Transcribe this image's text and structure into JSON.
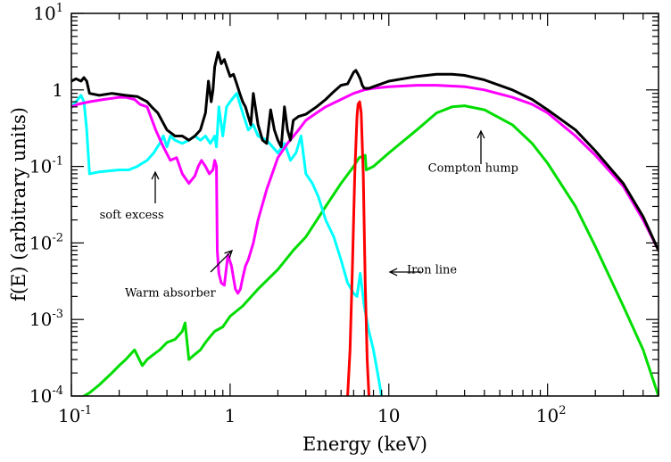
{
  "chart_data": {
    "type": "line",
    "title": "",
    "xlabel": "Energy (keV)",
    "ylabel": "f(E) (arbitrary units)",
    "x_scale": "log",
    "y_scale": "log",
    "xlim": [
      0.1,
      500
    ],
    "ylim": [
      0.0001,
      10
    ],
    "x_ticks": [
      {
        "value": 0.1,
        "label": "10",
        "sup": "-1"
      },
      {
        "value": 1,
        "label": "1",
        "sup": ""
      },
      {
        "value": 10,
        "label": "10",
        "sup": ""
      },
      {
        "value": 100,
        "label": "10",
        "sup": "2"
      }
    ],
    "y_ticks": [
      {
        "value": 0.0001,
        "label": "10",
        "sup": "-4"
      },
      {
        "value": 0.001,
        "label": "10",
        "sup": "-3"
      },
      {
        "value": 0.01,
        "label": "10",
        "sup": "-2"
      },
      {
        "value": 0.1,
        "label": "10",
        "sup": "-1"
      },
      {
        "value": 1,
        "label": "1",
        "sup": ""
      },
      {
        "value": 10,
        "label": "10",
        "sup": "1"
      }
    ],
    "grid": false,
    "legend": "none",
    "series": [
      {
        "color": "#000000",
        "x": [
          0.1,
          0.107,
          0.115,
          0.12,
          0.125,
          0.13,
          0.15,
          0.18,
          0.22,
          0.26,
          0.3,
          0.32,
          0.35,
          0.4,
          0.45,
          0.5,
          0.55,
          0.6,
          0.65,
          0.7,
          0.73,
          0.76,
          0.78,
          0.8,
          0.84,
          0.88,
          0.92,
          0.97,
          1.0,
          1.05,
          1.1,
          1.15,
          1.2,
          1.25,
          1.3,
          1.35,
          1.4,
          1.5,
          1.6,
          1.7,
          1.8,
          1.9,
          2.0,
          2.1,
          2.2,
          2.3,
          2.4,
          2.5,
          2.7,
          3.0,
          3.5,
          4.0,
          4.5,
          5.0,
          5.5,
          6.0,
          6.2,
          6.4,
          6.6,
          6.8,
          7.0,
          7.5,
          8.0,
          10,
          15,
          20,
          25,
          30,
          40,
          60,
          80,
          100,
          150,
          200,
          300,
          400,
          500
        ],
        "y": [
          1.3,
          1.4,
          1.3,
          1.45,
          1.3,
          0.9,
          0.85,
          0.9,
          0.85,
          0.82,
          0.7,
          0.6,
          0.5,
          0.3,
          0.25,
          0.25,
          0.22,
          0.25,
          0.3,
          0.5,
          1.3,
          0.7,
          1.0,
          2.0,
          3.1,
          2.2,
          2.5,
          1.8,
          1.5,
          1.6,
          1.2,
          0.9,
          0.7,
          0.6,
          0.45,
          0.35,
          0.9,
          0.35,
          0.22,
          0.2,
          0.55,
          0.3,
          0.22,
          0.18,
          0.6,
          0.3,
          0.22,
          0.4,
          0.45,
          0.48,
          0.6,
          0.75,
          0.95,
          1.15,
          1.2,
          1.7,
          1.8,
          1.6,
          1.4,
          1.15,
          1.05,
          1.05,
          1.1,
          1.3,
          1.5,
          1.6,
          1.6,
          1.55,
          1.35,
          1.0,
          0.75,
          0.55,
          0.3,
          0.16,
          0.06,
          0.022,
          0.008
        ]
      },
      {
        "color": "#ff00ff",
        "x": [
          0.1,
          0.11,
          0.13,
          0.16,
          0.2,
          0.22,
          0.25,
          0.27,
          0.3,
          0.34,
          0.38,
          0.42,
          0.46,
          0.5,
          0.55,
          0.6,
          0.63,
          0.66,
          0.7,
          0.74,
          0.78,
          0.8,
          0.82,
          0.83,
          0.85,
          0.88,
          0.92,
          0.97,
          1.02,
          1.08,
          1.12,
          1.16,
          1.2,
          1.25,
          1.3,
          1.4,
          1.5,
          1.7,
          2.0,
          2.3,
          2.7,
          3.0,
          3.5,
          4.0,
          5.0,
          6.0,
          7.0,
          8.0,
          10,
          15,
          20,
          30,
          40,
          60,
          80,
          100,
          150,
          200,
          300,
          400,
          500
        ],
        "y": [
          0.6,
          0.65,
          0.7,
          0.75,
          0.8,
          0.8,
          0.75,
          0.65,
          0.6,
          0.3,
          0.18,
          0.12,
          0.13,
          0.08,
          0.06,
          0.075,
          0.1,
          0.12,
          0.1,
          0.08,
          0.09,
          0.12,
          0.1,
          0.008,
          0.004,
          0.003,
          0.0028,
          0.007,
          0.005,
          0.0025,
          0.0022,
          0.0025,
          0.0035,
          0.005,
          0.006,
          0.01,
          0.02,
          0.05,
          0.13,
          0.2,
          0.3,
          0.4,
          0.5,
          0.6,
          0.75,
          0.9,
          1.0,
          1.05,
          1.1,
          1.15,
          1.15,
          1.1,
          1.0,
          0.8,
          0.65,
          0.5,
          0.25,
          0.14,
          0.055,
          0.02,
          0.008
        ]
      },
      {
        "color": "#00ffff",
        "x": [
          0.1,
          0.11,
          0.115,
          0.12,
          0.125,
          0.13,
          0.15,
          0.2,
          0.23,
          0.26,
          0.28,
          0.3,
          0.33,
          0.36,
          0.38,
          0.4,
          0.42,
          0.45,
          0.5,
          0.55,
          0.6,
          0.65,
          0.7,
          0.75,
          0.8,
          0.82,
          0.85,
          0.9,
          0.95,
          1.0,
          1.1,
          1.2,
          1.3,
          1.4,
          1.5,
          1.7,
          2.0,
          2.2,
          2.4,
          2.6,
          2.8,
          3.0,
          3.3,
          3.6,
          4.0,
          4.5,
          5.0,
          5.5,
          6.0,
          6.3,
          6.6,
          7.0,
          7.5,
          8.0,
          8.5,
          9.0
        ],
        "y": [
          0.6,
          0.75,
          0.85,
          0.7,
          0.3,
          0.08,
          0.085,
          0.09,
          0.09,
          0.1,
          0.11,
          0.12,
          0.15,
          0.2,
          0.25,
          0.18,
          0.25,
          0.22,
          0.2,
          0.22,
          0.25,
          0.22,
          0.25,
          0.2,
          0.25,
          0.18,
          0.6,
          0.25,
          0.6,
          0.7,
          0.9,
          0.5,
          0.3,
          0.35,
          0.25,
          0.22,
          0.15,
          0.2,
          0.12,
          0.15,
          0.25,
          0.08,
          0.06,
          0.04,
          0.02,
          0.012,
          0.006,
          0.003,
          0.0022,
          0.002,
          0.004,
          0.0015,
          0.0007,
          0.0004,
          0.0002,
          0.0001
        ]
      },
      {
        "color": "#00dd00",
        "x": [
          0.12,
          0.13,
          0.15,
          0.18,
          0.2,
          0.22,
          0.25,
          0.28,
          0.3,
          0.33,
          0.36,
          0.4,
          0.45,
          0.5,
          0.52,
          0.55,
          0.6,
          0.65,
          0.7,
          0.75,
          0.8,
          0.9,
          1.0,
          1.2,
          1.5,
          2.0,
          2.5,
          3.0,
          4.0,
          5.0,
          6.0,
          6.5,
          7.1,
          7.2,
          8.0,
          10,
          15,
          20,
          25,
          30,
          40,
          60,
          80,
          100,
          150,
          200,
          300,
          400,
          500
        ],
        "y": [
          0.0001,
          0.00011,
          0.00014,
          0.0002,
          0.00025,
          0.0003,
          0.0004,
          0.00025,
          0.0003,
          0.00035,
          0.0004,
          0.0005,
          0.00055,
          0.0007,
          0.0009,
          0.0003,
          0.00035,
          0.0004,
          0.0005,
          0.0006,
          0.0007,
          0.0008,
          0.0011,
          0.0015,
          0.0025,
          0.0045,
          0.008,
          0.012,
          0.03,
          0.06,
          0.1,
          0.13,
          0.14,
          0.09,
          0.1,
          0.15,
          0.3,
          0.5,
          0.6,
          0.62,
          0.55,
          0.35,
          0.2,
          0.11,
          0.03,
          0.009,
          0.0015,
          0.0004,
          0.0001
        ]
      },
      {
        "color": "#ff0000",
        "x": [
          5.5,
          5.7,
          5.9,
          6.1,
          6.3,
          6.4,
          6.55,
          6.7,
          6.9,
          7.1,
          7.3,
          7.5
        ],
        "y": [
          0.0001,
          0.0004,
          0.005,
          0.08,
          0.45,
          0.65,
          0.7,
          0.5,
          0.08,
          0.003,
          0.0003,
          0.0001
        ]
      }
    ],
    "annotations": [
      {
        "text": "soft excess",
        "x": 0.24,
        "y": 0.021
      },
      {
        "text": "Warm absorber",
        "x": 0.42,
        "y": 0.002
      },
      {
        "text": "Iron line",
        "x": 13,
        "y": 0.004
      },
      {
        "text": "Compton hump",
        "x": 34,
        "y": 0.085
      }
    ]
  }
}
